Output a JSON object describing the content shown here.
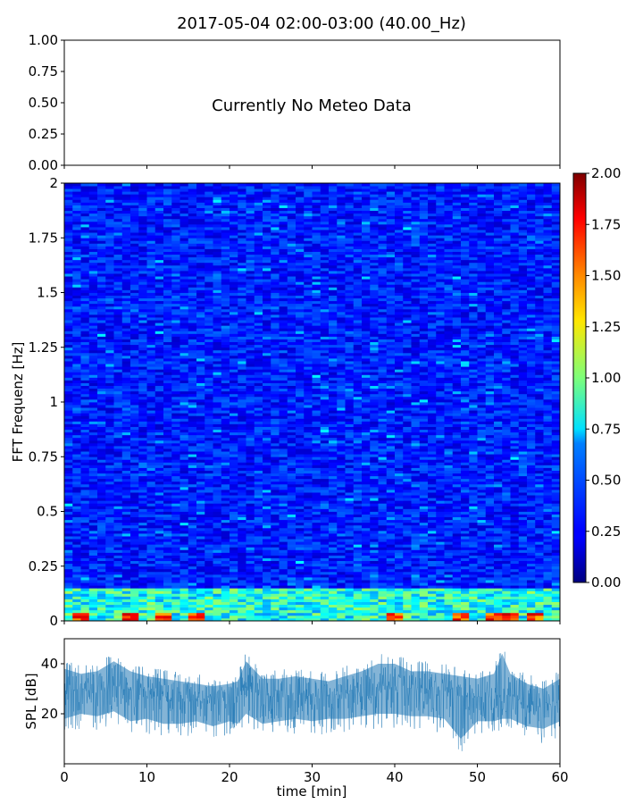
{
  "figure": {
    "title": "2017-05-04 02:00-03:00 (40.00_Hz)"
  },
  "chart_data": [
    {
      "type": "line",
      "panel": "meteo",
      "annotation": "Currently No Meteo Data",
      "x_range": [
        0,
        60
      ],
      "ylim": [
        0,
        1
      ],
      "y_ticks": [
        "0.00",
        "0.25",
        "0.50",
        "0.75",
        "1.00"
      ],
      "grid": false,
      "series": []
    },
    {
      "type": "heatmap",
      "panel": "spectrogram",
      "ylabel": "FFT Frequenz [Hz]",
      "xlim": [
        0,
        60
      ],
      "ylim": [
        0,
        2
      ],
      "y_ticks": [
        "0",
        "0.25",
        "0.5",
        "0.75",
        "1",
        "1.25",
        "1.5",
        "1.75",
        "2"
      ],
      "colorscale": "jet",
      "colorbar_range": [
        0,
        2
      ],
      "colorbar_ticks": [
        "0.00",
        "0.25",
        "0.50",
        "0.75",
        "1.00",
        "1.25",
        "1.50",
        "1.75",
        "2.00"
      ],
      "typical_value": 0.3,
      "low_frequency_band_value": 0.9,
      "hot_spots_min": [
        2,
        8,
        12,
        16,
        40,
        48,
        52,
        54,
        57
      ],
      "hot_spot_value": 1.7
    },
    {
      "type": "line",
      "panel": "spl",
      "xlabel": "time [min]",
      "ylabel": "SPL [dB]",
      "xlim": [
        0,
        60
      ],
      "ylim": [
        0,
        50
      ],
      "x_ticks": [
        "0",
        "10",
        "20",
        "30",
        "40",
        "50",
        "60"
      ],
      "y_ticks": [
        "20",
        "40"
      ],
      "color": "#1f77b4",
      "x": [
        0,
        2,
        4,
        6,
        8,
        10,
        12,
        14,
        16,
        18,
        20,
        21,
        22,
        24,
        26,
        28,
        30,
        32,
        34,
        36,
        38,
        40,
        42,
        44,
        46,
        48,
        50,
        52,
        53,
        54,
        56,
        58,
        60
      ],
      "mean": [
        29,
        30,
        30,
        31,
        29,
        28,
        27,
        26,
        26,
        25,
        26,
        27,
        31,
        27,
        27,
        28,
        27,
        27,
        28,
        29,
        31,
        31,
        30,
        30,
        29,
        28,
        27,
        26,
        28,
        27,
        24,
        23,
        25
      ],
      "upper": [
        42,
        40,
        41,
        45,
        41,
        39,
        38,
        37,
        36,
        35,
        36,
        37,
        45,
        38,
        38,
        39,
        38,
        37,
        39,
        41,
        44,
        44,
        41,
        41,
        40,
        39,
        38,
        40,
        48,
        40,
        36,
        34,
        38
      ],
      "lower": [
        12,
        14,
        13,
        15,
        11,
        12,
        10,
        10,
        11,
        9,
        11,
        10,
        14,
        10,
        11,
        12,
        11,
        12,
        12,
        13,
        14,
        14,
        13,
        13,
        12,
        4,
        11,
        11,
        12,
        12,
        9,
        8,
        11
      ]
    }
  ]
}
